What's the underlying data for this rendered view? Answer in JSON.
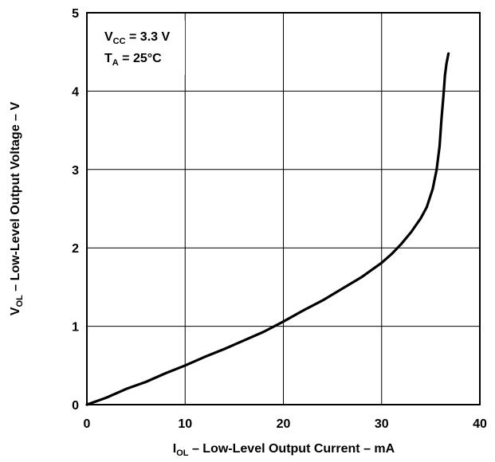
{
  "chart_data": {
    "type": "line",
    "title": "",
    "xlabel": {
      "main": "I",
      "sub": "OL",
      "rest": " – Low-Level Output Current – mA"
    },
    "ylabel": {
      "main": "V",
      "sub": "OL",
      "rest": " – Low-Level Output Voltage – V"
    },
    "xlim": [
      0,
      40
    ],
    "ylim": [
      0,
      5
    ],
    "xticks": [
      0,
      10,
      20,
      30,
      40
    ],
    "yticks": [
      0,
      1,
      2,
      3,
      4,
      5
    ],
    "grid": true,
    "annotations": [
      {
        "main": "V",
        "sub": "CC",
        "rest": " = 3.3 V"
      },
      {
        "main": "T",
        "sub": "A",
        "rest": " = 25°C"
      }
    ],
    "series": [
      {
        "x": [
          0,
          2,
          4,
          6,
          8,
          10,
          12,
          14,
          16,
          18,
          20,
          22,
          24,
          26,
          28,
          30,
          31,
          32,
          33,
          34,
          34.6,
          35.2,
          35.6,
          35.9,
          36.1,
          36.3,
          36.45,
          36.6,
          36.8
        ],
        "y": [
          0,
          0.09,
          0.2,
          0.29,
          0.4,
          0.5,
          0.61,
          0.71,
          0.82,
          0.93,
          1.06,
          1.2,
          1.33,
          1.48,
          1.63,
          1.81,
          1.92,
          2.05,
          2.2,
          2.38,
          2.52,
          2.75,
          3.0,
          3.3,
          3.65,
          3.95,
          4.2,
          4.35,
          4.48
        ],
        "color": "#000000"
      }
    ]
  }
}
